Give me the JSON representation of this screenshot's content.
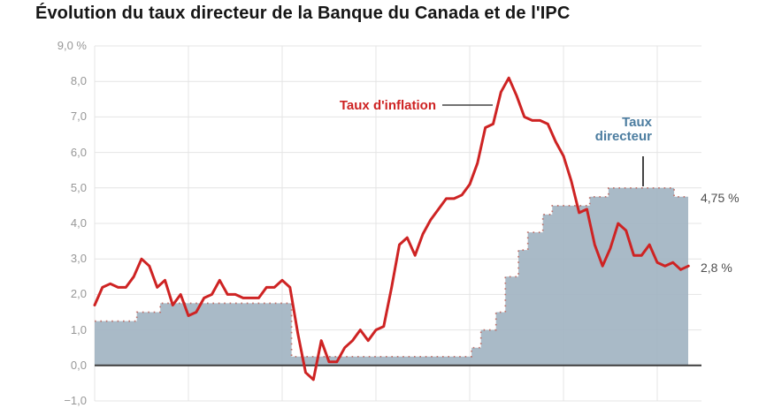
{
  "title": "Évolution du taux directeur de la Banque du Canada et de l'IPC",
  "labels": {
    "inflation": "Taux d'inflation",
    "policy_line1": "Taux",
    "policy_line2": "directeur"
  },
  "colors": {
    "inflation_line": "#ce2323",
    "policy_area_fill": "#a3b5c3",
    "policy_area_dots": "#bb6158",
    "policy_label": "#4c7da0",
    "end_labels": "#4d4d4d",
    "grid": "#e4e4e4",
    "zero_line": "#3d3d3d",
    "axis_ticks": "#979797",
    "title": "#161616",
    "leader_line": "#444444",
    "background": "#ffffff"
  },
  "chart_data": {
    "type": "line+step-area",
    "title": "Évolution du taux directeur de la Banque du Canada et de l'IPC",
    "ylim": [
      -1,
      9
    ],
    "x_range": [
      2018,
      2024.47
    ],
    "x_gridlines": [
      2018,
      2019,
      2020,
      2021,
      2022,
      2023,
      2024
    ],
    "grid": true,
    "legend_position": "annotated-on-chart",
    "y_ticks": [
      {
        "v": 9,
        "label": "9,0 %"
      },
      {
        "v": 8,
        "label": "8,0"
      },
      {
        "v": 7,
        "label": "7,0"
      },
      {
        "v": 6,
        "label": "6,0"
      },
      {
        "v": 5,
        "label": "5,0"
      },
      {
        "v": 4,
        "label": "4,0"
      },
      {
        "v": 3,
        "label": "3,0"
      },
      {
        "v": 2,
        "label": "2,0"
      },
      {
        "v": 1,
        "label": "1,0"
      },
      {
        "v": 0,
        "label": "0,0"
      },
      {
        "v": -1,
        "label": "−1,0"
      }
    ],
    "series": [
      {
        "name": "Taux d'inflation",
        "type": "line",
        "x_start": 2018,
        "x_step_years": 0.08333,
        "values": [
          1.7,
          2.2,
          2.3,
          2.2,
          2.2,
          2.5,
          3.0,
          2.8,
          2.2,
          2.4,
          1.7,
          2.0,
          1.4,
          1.5,
          1.9,
          2.0,
          2.4,
          2.0,
          2.0,
          1.9,
          1.9,
          1.9,
          2.2,
          2.2,
          2.4,
          2.2,
          0.9,
          -0.2,
          -0.4,
          0.7,
          0.1,
          0.1,
          0.5,
          0.7,
          1.0,
          0.7,
          1.0,
          1.1,
          2.2,
          3.4,
          3.6,
          3.1,
          3.7,
          4.1,
          4.4,
          4.7,
          4.7,
          4.8,
          5.1,
          5.7,
          6.7,
          6.8,
          7.7,
          8.1,
          7.6,
          7.0,
          6.9,
          6.9,
          6.8,
          6.3,
          5.9,
          5.2,
          4.3,
          4.4,
          3.4,
          2.8,
          3.3,
          4.0,
          3.8,
          3.1,
          3.1,
          3.4,
          2.9,
          2.8,
          2.9,
          2.7,
          2.8
        ]
      },
      {
        "name": "Taux directeur",
        "type": "step-area",
        "end_x": 2024.33,
        "end_value": 4.75,
        "steps": [
          {
            "x": 2018.0,
            "v": 1.25
          },
          {
            "x": 2018.45,
            "v": 1.5
          },
          {
            "x": 2018.7,
            "v": 1.75
          },
          {
            "x": 2020.1,
            "v": 0.25
          },
          {
            "x": 2022.02,
            "v": 0.5
          },
          {
            "x": 2022.12,
            "v": 1.0
          },
          {
            "x": 2022.28,
            "v": 1.5
          },
          {
            "x": 2022.38,
            "v": 2.5
          },
          {
            "x": 2022.52,
            "v": 3.25
          },
          {
            "x": 2022.62,
            "v": 3.75
          },
          {
            "x": 2022.78,
            "v": 4.25
          },
          {
            "x": 2022.88,
            "v": 4.5
          },
          {
            "x": 2023.28,
            "v": 4.75
          },
          {
            "x": 2023.48,
            "v": 5.0
          },
          {
            "x": 2024.18,
            "v": 4.75
          }
        ]
      }
    ],
    "end_labels": {
      "policy": "4,75 %",
      "inflation": "2,8 %"
    }
  }
}
